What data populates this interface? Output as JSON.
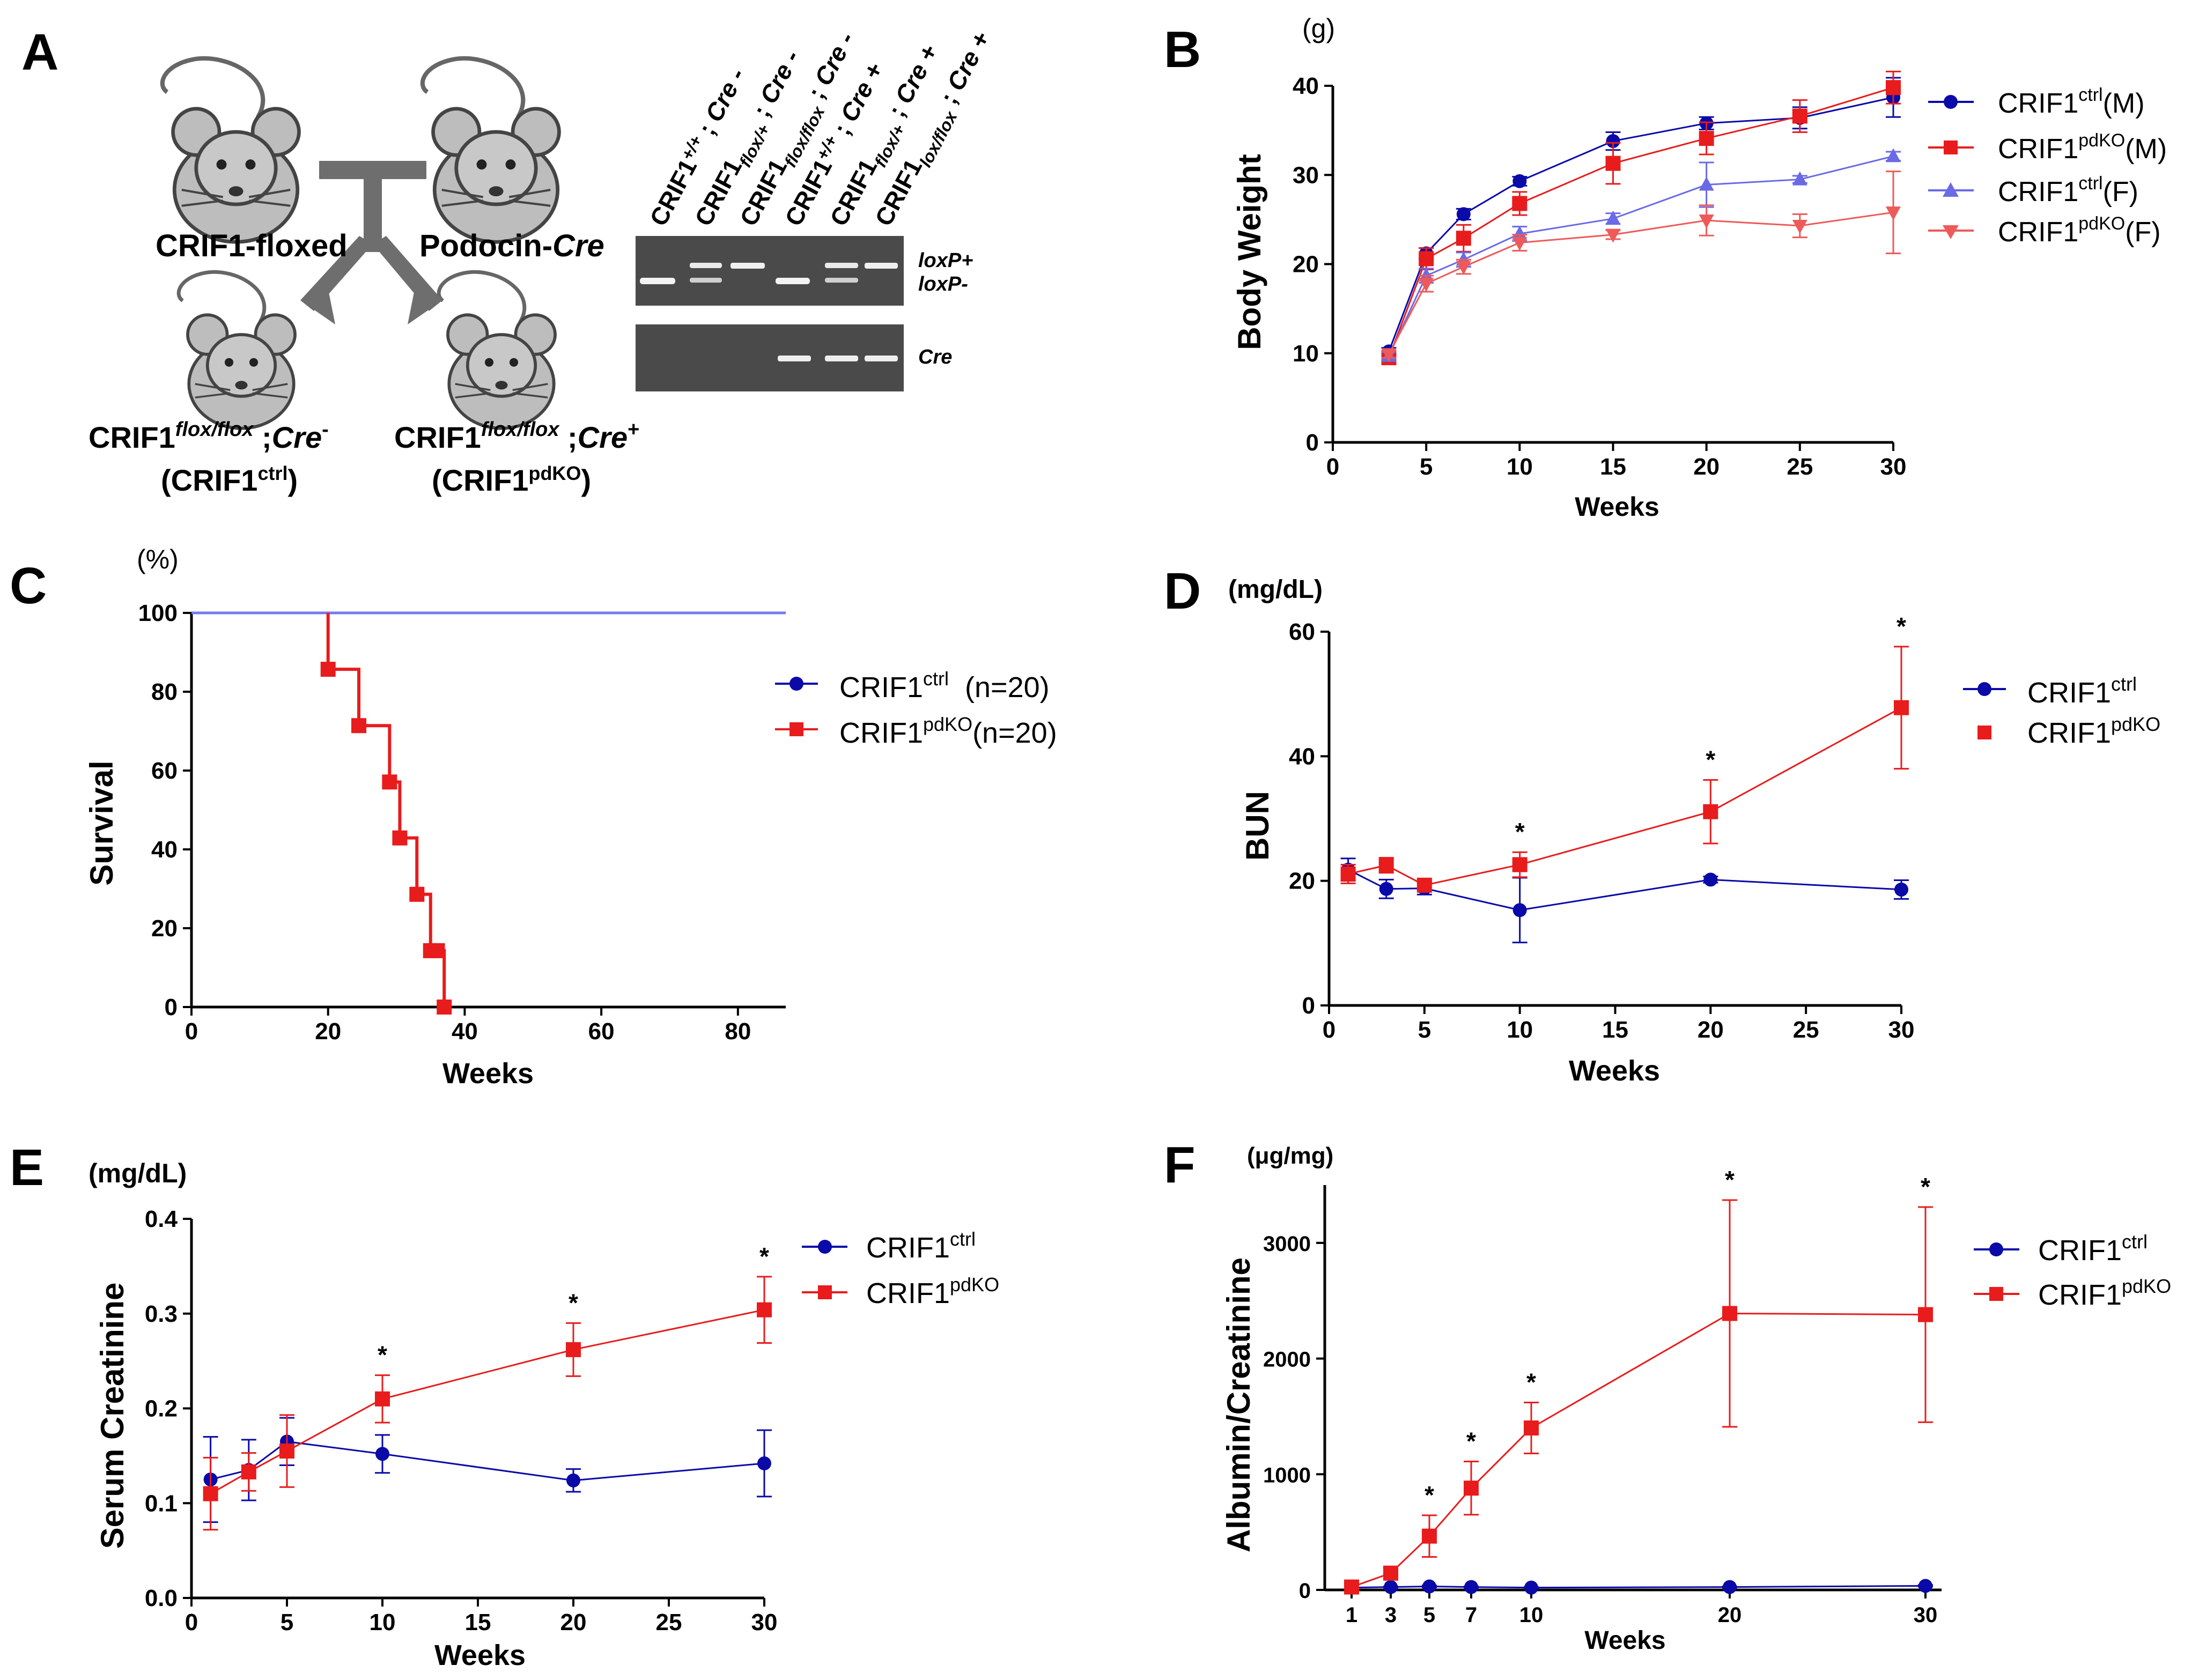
{
  "panel_a": {
    "letter": "A",
    "floxed_label": "CRIF1-floxed",
    "podocin_prefix": "Podocin-",
    "podocin_suffix": "Cre",
    "offspring": [
      {
        "sup": "flox/flox",
        "cre": "Cre",
        "cre_sign": "-",
        "abbr_sup": "ctrl"
      },
      {
        "sup": "flox/flox",
        "cre": "Cre",
        "cre_sign": "+",
        "abbr_sup": "pdKO"
      }
    ],
    "crif1": "CRIF1",
    "lanes": [
      {
        "sup": "+/+",
        "cre": "Cre -"
      },
      {
        "sup": "flox/+",
        "cre": "Cre -"
      },
      {
        "sup": "flox/flox",
        "cre": "Cre -"
      },
      {
        "sup": "+/+",
        "cre": "Cre +"
      },
      {
        "sup": "flox/+",
        "cre": "Cre +"
      },
      {
        "sup": "lox/flox",
        "cre": "Cre +"
      }
    ],
    "gel_label_loxp_plus": "loxP+",
    "gel_label_loxp_minus": "loxP-",
    "gel_label_cre": "Cre"
  },
  "legend": {
    "crif1": "CRIF1",
    "ctrl": "ctrl",
    "pdko": "pdKO",
    "male": "(M)",
    "female": "(F)",
    "n20": "(n=20)"
  },
  "colors": {
    "ctrl": "#0a0aa8",
    "pdko": "#e81c1c",
    "ctrl_f": "#6a6ae6",
    "pdko_f": "#ee5a5a",
    "grid": "#000000"
  },
  "chart_data": [
    {
      "panel": "B",
      "type": "line",
      "unit_label": "(g)",
      "ylabel": "Body Weight",
      "xlabel": "Weeks",
      "xlim": [
        0,
        30
      ],
      "ylim": [
        0,
        40
      ],
      "xticks": [
        0,
        5,
        10,
        15,
        20,
        25,
        30
      ],
      "yticks": [
        0,
        10,
        20,
        30,
        40
      ],
      "series": [
        {
          "name": "CRIF1 ctrl (M)",
          "x": [
            3,
            5,
            7,
            10,
            15,
            20,
            25,
            30
          ],
          "values": [
            10.2,
            21.2,
            25.6,
            29.3,
            33.8,
            35.8,
            36.4,
            38.7
          ],
          "errors": [
            0.4,
            0.6,
            0.6,
            0.5,
            1.0,
            0.7,
            1.2,
            2.2
          ]
        },
        {
          "name": "CRIF1 pdKO (M)",
          "x": [
            3,
            5,
            7,
            10,
            15,
            20,
            25,
            30
          ],
          "values": [
            9.5,
            20.6,
            22.9,
            26.8,
            31.3,
            34.1,
            36.6,
            39.8
          ],
          "errors": [
            0.5,
            1.2,
            1.5,
            1.3,
            2.3,
            1.8,
            1.8,
            1.8
          ]
        },
        {
          "name": "CRIF1 ctrl (F)",
          "x": [
            3,
            5,
            7,
            10,
            15,
            20,
            25,
            30
          ],
          "values": [
            9.7,
            18.7,
            20.5,
            23.4,
            25.1,
            28.9,
            29.5,
            32.1
          ],
          "errors": [
            0.4,
            0.8,
            0.8,
            0.8,
            0.6,
            2.5,
            0.4,
            0.5
          ]
        },
        {
          "name": "CRIF1 pdKO (F)",
          "x": [
            3,
            5,
            7,
            10,
            15,
            20,
            25,
            30
          ],
          "values": [
            9.9,
            17.8,
            19.7,
            22.4,
            23.3,
            24.9,
            24.3,
            25.8
          ],
          "errors": [
            0.4,
            0.9,
            0.8,
            0.9,
            0.5,
            1.7,
            1.3,
            4.6
          ]
        }
      ]
    },
    {
      "panel": "C",
      "type": "line",
      "step": true,
      "unit_label": "(%)",
      "ylabel": "Survival",
      "xlabel": "Weeks",
      "xlim": [
        0,
        87
      ],
      "ylim": [
        0,
        100
      ],
      "xticks": [
        0,
        20,
        40,
        60,
        80
      ],
      "yticks": [
        0,
        20,
        40,
        60,
        80,
        100
      ],
      "series": [
        {
          "name": "CRIF1 ctrl (n=20)",
          "x": [
            0,
            87
          ],
          "values": [
            100,
            100
          ]
        },
        {
          "name": "CRIF1 pdKO (n=20)",
          "x": [
            20,
            24.5,
            29,
            30.5,
            33,
            35,
            36,
            37
          ],
          "values": [
            85.7,
            71.4,
            57.1,
            42.9,
            28.6,
            14.3,
            14.3,
            0
          ]
        }
      ]
    },
    {
      "panel": "D",
      "type": "line",
      "unit_label": "(mg/dL)",
      "ylabel": "BUN",
      "xlabel": "Weeks",
      "xlim": [
        0,
        30
      ],
      "ylim": [
        0,
        60
      ],
      "xticks": [
        0,
        5,
        10,
        15,
        20,
        25,
        30
      ],
      "yticks": [
        0,
        20,
        40,
        60
      ],
      "significance": {
        "x": [
          10,
          20,
          30
        ],
        "mark": "*"
      },
      "series": [
        {
          "name": "CRIF1 ctrl",
          "x": [
            1,
            3,
            5,
            10,
            20,
            30
          ],
          "values": [
            21.8,
            18.7,
            18.8,
            15.3,
            20.2,
            18.6
          ],
          "errors": [
            1.8,
            1.5,
            1.0,
            5.2,
            0.5,
            1.5
          ]
        },
        {
          "name": "CRIF1 pdKO",
          "x": [
            1,
            3,
            5,
            10,
            20,
            30
          ],
          "values": [
            21.1,
            22.5,
            19.3,
            22.6,
            31.1,
            47.8
          ],
          "errors": [
            1.5,
            1.2,
            0.8,
            2.0,
            5.1,
            9.8
          ]
        }
      ]
    },
    {
      "panel": "E",
      "type": "line",
      "unit_label": "(mg/dL)",
      "ylabel": "Serum Creatinine",
      "xlabel": "Weeks",
      "xlim": [
        0,
        30
      ],
      "ylim": [
        0,
        0.4
      ],
      "xticks": [
        0,
        5,
        10,
        15,
        20,
        25,
        30
      ],
      "yticks": [
        "0.0",
        "0.1",
        "0.2",
        "0.3",
        "0.4"
      ],
      "significance": {
        "x": [
          10,
          20,
          30
        ],
        "mark": "*"
      },
      "series": [
        {
          "name": "CRIF1 ctrl",
          "x": [
            1,
            3,
            5,
            10,
            20,
            30
          ],
          "values": [
            0.125,
            0.135,
            0.165,
            0.152,
            0.124,
            0.142
          ],
          "errors": [
            0.045,
            0.032,
            0.025,
            0.02,
            0.012,
            0.035
          ]
        },
        {
          "name": "CRIF1 pdKO",
          "x": [
            1,
            3,
            5,
            10,
            20,
            30
          ],
          "values": [
            0.11,
            0.133,
            0.155,
            0.21,
            0.262,
            0.304
          ],
          "errors": [
            0.038,
            0.02,
            0.038,
            0.025,
            0.028,
            0.035
          ]
        }
      ]
    },
    {
      "panel": "F",
      "type": "line",
      "unit_label": "(μg/mg)",
      "ylabel": "Albumin/Creatinine",
      "xlabel": "Weeks",
      "categorical_x": true,
      "ylim": [
        0,
        3500
      ],
      "xticks": [
        1,
        3,
        5,
        7,
        10,
        20,
        30
      ],
      "yticks": [
        0,
        1000,
        2000,
        3000
      ],
      "significance": {
        "x": [
          5,
          7,
          10,
          20,
          30
        ],
        "mark": "*"
      },
      "series": [
        {
          "name": "CRIF1 ctrl",
          "x": [
            1,
            3,
            5,
            7,
            10,
            20,
            30
          ],
          "values": [
            20,
            25,
            30,
            25,
            20,
            25,
            35
          ],
          "errors": [
            5,
            5,
            8,
            5,
            5,
            5,
            8
          ]
        },
        {
          "name": "CRIF1 pdKO",
          "x": [
            1,
            3,
            5,
            7,
            10,
            20,
            30
          ],
          "values": [
            25,
            145,
            465,
            880,
            1400,
            2390,
            2380
          ],
          "errors": [
            10,
            30,
            180,
            230,
            220,
            980,
            930
          ]
        }
      ]
    }
  ]
}
